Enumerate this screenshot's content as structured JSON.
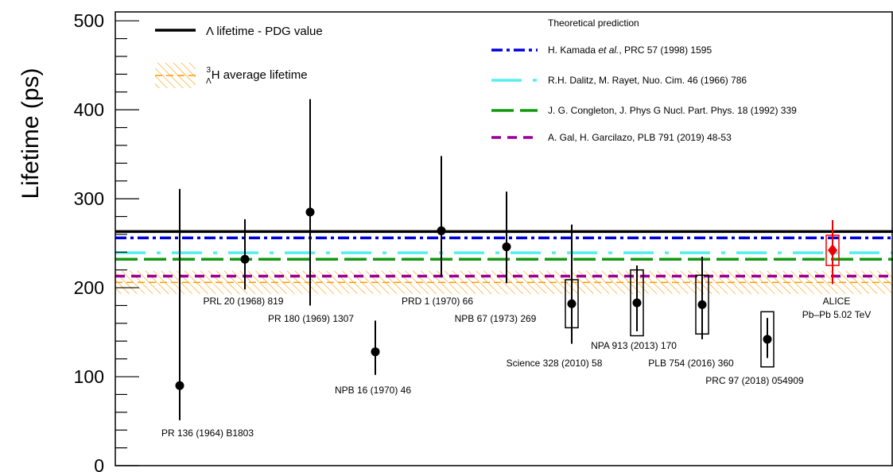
{
  "chart_data": {
    "type": "scatter",
    "ylabel": "Lifetime (ps)",
    "ylim": [
      0,
      510
    ],
    "y_ticks": [
      0,
      100,
      200,
      300,
      400,
      500
    ],
    "x_axis_labels_shown": false,
    "grid": false,
    "legend_position": "top",
    "references": {
      "lambda_pdg": {
        "name": "Λ lifetime - PDG value",
        "value": 263.2,
        "color": "#000000"
      },
      "hypertriton_avg": {
        "name_sub": "Λ",
        "name_sup": "3",
        "name_main": "H average lifetime",
        "center": 206.0,
        "low": 193.0,
        "high": 219.0,
        "color": "#ff9900"
      }
    },
    "theory_title": "Theoretical prediction",
    "theory": [
      {
        "name_pre": "H. Kamada ",
        "name_it": "et al.",
        "name_post": ", PRC 57 (1998) 1595",
        "value": 256,
        "color": "#0000dd",
        "dash": "14 5 4 5"
      },
      {
        "name_pre": "R.H. Dalitz, M. Rayet, Nuo. Cim. 46 (1966) 786",
        "name_it": "",
        "name_post": "",
        "value": 239.3,
        "color": "#55eeee",
        "dash": "38 14 5 14"
      },
      {
        "name_pre": "J. G. Congleton, J. Phys G Nucl. Part. Phys. 18 (1992) 339",
        "name_it": "",
        "name_post": "",
        "value": 232,
        "color": "#119911",
        "dash": "28 8"
      },
      {
        "name_pre": "A. Gal, H. Garcilazo, PLB 791 (2019) 48-53",
        "name_it": "",
        "name_post": "",
        "value": 213,
        "color": "#990099",
        "dash": "12 8"
      }
    ],
    "measurements": [
      {
        "label": "PR 136 (1964) B1803",
        "value": 90,
        "stat_lo": 39,
        "stat_hi": 221
      },
      {
        "label": "PRL 20 (1968) 819",
        "value": 232,
        "stat_lo": 34,
        "stat_hi": 45
      },
      {
        "label": "PR 180 (1969) 1307",
        "value": 285,
        "stat_lo": 105,
        "stat_hi": 127
      },
      {
        "label": "NPB 16 (1970) 46",
        "value": 128,
        "stat_lo": 26,
        "stat_hi": 35
      },
      {
        "label": "PRD 1 (1970) 66",
        "value": 264,
        "stat_lo": 52,
        "stat_hi": 84
      },
      {
        "label": "NPB 67 (1973) 269",
        "value": 246,
        "stat_lo": 41,
        "stat_hi": 62
      },
      {
        "label": "Science 328 (2010) 58",
        "value": 182,
        "stat_lo": 45,
        "stat_hi": 89,
        "syst_lo": 27,
        "syst_hi": 27
      },
      {
        "label": "NPA 913 (2013) 170",
        "value": 183,
        "stat_lo": 32,
        "stat_hi": 42,
        "syst_lo": 37,
        "syst_hi": 37
      },
      {
        "label": "PLB 754 (2016) 360",
        "value": 181,
        "stat_lo": 39,
        "stat_hi": 54,
        "syst_lo": 33,
        "syst_hi": 33
      },
      {
        "label": "PRC 97 (2018) 054909",
        "value": 142,
        "stat_lo": 21,
        "stat_hi": 24,
        "syst_lo": 31,
        "syst_hi": 31
      },
      {
        "label_line1": "ALICE",
        "label_line2": "Pb–Pb 5.02 TeV",
        "value": 242,
        "stat_lo": 38,
        "stat_hi": 34,
        "syst_lo": 17,
        "syst_hi": 17,
        "color": "#ee0000",
        "highlight": true
      }
    ]
  }
}
